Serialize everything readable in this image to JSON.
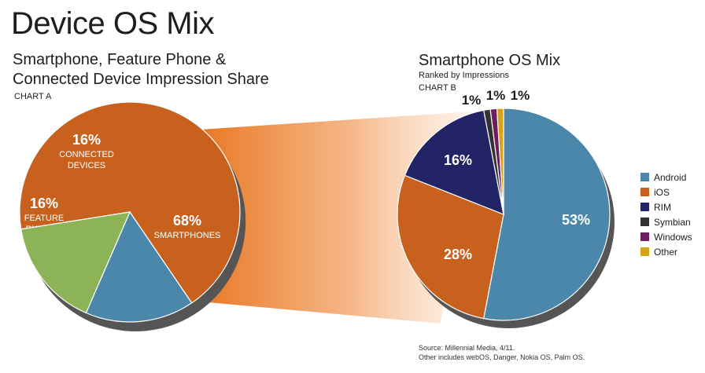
{
  "title": "Device OS Mix",
  "chart_a": {
    "subtitle_line1": "Smartphone, Feature Phone &",
    "subtitle_line2": "Connected Device Impression Share",
    "chart_label": "CHART A"
  },
  "chart_b": {
    "subtitle": "Smartphone OS Mix",
    "note": "Ranked by Impressions",
    "chart_label": "CHART B"
  },
  "source": {
    "line1": "Source: Millennial Media, 4/11.",
    "line2": "Other includes webOS, Danger, Nokia OS, Palm OS."
  },
  "chart_data": [
    {
      "type": "pie",
      "title": "Smartphone, Feature Phone & Connected Device Impression Share",
      "slices": [
        {
          "label": "SMARTPHONES",
          "value": 68,
          "display": "68%",
          "color": "#c8601e"
        },
        {
          "label": "FEATURE PHONES",
          "value": 16,
          "display": "16%",
          "color": "#4b87aa"
        },
        {
          "label": "CONNECTED DEVICES",
          "value": 16,
          "display": "16%",
          "color": "#8cb356"
        }
      ]
    },
    {
      "type": "pie",
      "title": "Smartphone OS Mix",
      "slices": [
        {
          "label": "Android",
          "value": 53,
          "display": "53%",
          "color": "#4b87aa"
        },
        {
          "label": "iOS",
          "value": 28,
          "display": "28%",
          "color": "#c8601e"
        },
        {
          "label": "RIM",
          "value": 16,
          "display": "16%",
          "color": "#232466"
        },
        {
          "label": "Symbian",
          "value": 1,
          "display": "1%",
          "color": "#333333"
        },
        {
          "label": "Windows",
          "value": 1,
          "display": "1%",
          "color": "#6e1e5e"
        },
        {
          "label": "Other",
          "value": 1,
          "display": "1%",
          "color": "#d8a317"
        }
      ],
      "legend": [
        "Android",
        "iOS",
        "RIM",
        "Symbian",
        "Windows",
        "Other"
      ],
      "legend_position": "right"
    }
  ]
}
